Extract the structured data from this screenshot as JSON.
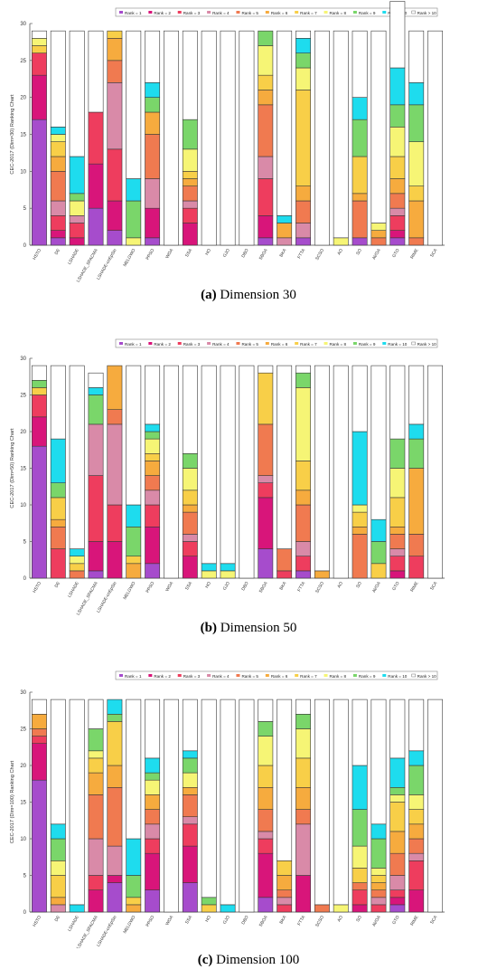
{
  "algorithms": [
    "HSTO",
    "DE",
    "LSHADE",
    "LSHADE_SPACMA",
    "LSHADE-cnEpSin",
    "MELGWO",
    "PPSO",
    "WOA",
    "SSA",
    "HO",
    "GJO",
    "DBO",
    "SBOA",
    "BKA",
    "FTTA",
    "SCSO",
    "AO",
    "SO",
    "AVOA",
    "GTO",
    "RIME",
    "SCA"
  ],
  "legend": [
    "Rank = 1",
    "Rank = 2",
    "Rank = 3",
    "Rank = 4",
    "Rank = 5",
    "Rank = 6",
    "Rank = 7",
    "Rank = 8",
    "Rank = 9",
    "Rank = 10",
    "Rank > 10"
  ],
  "colors": [
    "#a64ccc",
    "#d8157a",
    "#ee3d5e",
    "#d98aa8",
    "#f07a50",
    "#f6ab3e",
    "#f8cf48",
    "#f6f575",
    "#7ad66a",
    "#1edcee",
    "#ffffff"
  ],
  "captions": [
    {
      "label": "(a)",
      "text": " Dimension 30"
    },
    {
      "label": "(b)",
      "text": " Dimension 50"
    },
    {
      "label": "(c)",
      "text": " Dimension 100"
    }
  ],
  "chart_data": [
    {
      "type": "bar",
      "stacked": true,
      "ylabel": "CEC-2017 (Dim=30) Ranking Chart",
      "ylim": [
        0,
        30
      ],
      "yticks": [
        0,
        5,
        10,
        15,
        20,
        25,
        30
      ],
      "counts": [
        [
          17,
          6,
          3,
          0,
          0,
          0,
          1,
          1,
          0,
          0,
          1
        ],
        [
          1,
          1,
          2,
          2,
          4,
          2,
          2,
          1,
          0,
          1,
          13
        ],
        [
          0,
          1,
          2,
          1,
          0,
          0,
          0,
          2,
          1,
          5,
          17
        ],
        [
          5,
          6,
          7,
          0,
          0,
          0,
          0,
          0,
          0,
          0,
          11
        ],
        [
          2,
          4,
          7,
          9,
          3,
          3,
          1,
          0,
          0,
          0,
          0
        ],
        [
          0,
          0,
          0,
          0,
          0,
          0,
          0,
          1,
          5,
          3,
          20
        ],
        [
          1,
          4,
          0,
          4,
          6,
          3,
          0,
          0,
          2,
          2,
          7
        ],
        [
          0,
          0,
          0,
          0,
          0,
          0,
          0,
          0,
          0,
          0,
          29
        ],
        [
          0,
          3,
          2,
          1,
          2,
          1,
          1,
          3,
          4,
          0,
          12
        ],
        [
          0,
          0,
          0,
          0,
          0,
          0,
          0,
          0,
          0,
          0,
          29
        ],
        [
          0,
          0,
          0,
          0,
          0,
          0,
          0,
          0,
          0,
          0,
          29
        ],
        [
          0,
          0,
          0,
          0,
          0,
          0,
          0,
          0,
          0,
          0,
          29
        ],
        [
          1,
          3,
          5,
          3,
          7,
          2,
          2,
          4,
          2,
          0,
          0
        ],
        [
          0,
          0,
          0,
          1,
          0,
          2,
          0,
          0,
          0,
          1,
          25
        ],
        [
          1,
          0,
          0,
          2,
          3,
          2,
          13,
          3,
          2,
          2,
          1
        ],
        [
          0,
          0,
          0,
          0,
          0,
          0,
          0,
          0,
          0,
          0,
          29
        ],
        [
          0,
          0,
          0,
          0,
          0,
          0,
          0,
          1,
          0,
          0,
          28
        ],
        [
          1,
          0,
          0,
          0,
          5,
          1,
          5,
          0,
          5,
          3,
          9
        ],
        [
          0,
          0,
          0,
          0,
          1,
          1,
          0,
          1,
          0,
          0,
          26
        ],
        [
          1,
          1,
          2,
          1,
          2,
          2,
          3,
          4,
          3,
          5,
          9
        ],
        [
          0,
          0,
          0,
          0,
          1,
          5,
          2,
          6,
          5,
          3,
          7
        ],
        [
          0,
          0,
          0,
          0,
          0,
          0,
          0,
          0,
          0,
          0,
          29
        ]
      ]
    },
    {
      "type": "bar",
      "stacked": true,
      "ylabel": "CEC-2017 (Dim=50) Ranking Chart",
      "ylim": [
        0,
        30
      ],
      "yticks": [
        0,
        5,
        10,
        15,
        20,
        25,
        30
      ],
      "counts": [
        [
          18,
          4,
          3,
          0,
          0,
          0,
          1,
          0,
          1,
          0,
          2
        ],
        [
          0,
          0,
          4,
          0,
          3,
          1,
          3,
          0,
          2,
          6,
          10
        ],
        [
          0,
          0,
          0,
          0,
          1,
          0,
          1,
          1,
          0,
          1,
          25
        ],
        [
          1,
          4,
          9,
          7,
          0,
          0,
          0,
          0,
          4,
          1,
          2
        ],
        [
          0,
          5,
          5,
          11,
          2,
          6,
          0,
          0,
          0,
          0,
          0
        ],
        [
          0,
          0,
          0,
          0,
          0,
          2,
          1,
          0,
          4,
          3,
          19
        ],
        [
          2,
          5,
          3,
          2,
          2,
          2,
          1,
          2,
          1,
          1,
          8
        ],
        [
          0,
          0,
          0,
          0,
          0,
          0,
          0,
          0,
          0,
          0,
          29
        ],
        [
          0,
          3,
          2,
          1,
          3,
          1,
          2,
          3,
          2,
          0,
          12
        ],
        [
          0,
          0,
          0,
          0,
          0,
          0,
          0,
          1,
          0,
          1,
          27
        ],
        [
          0,
          0,
          0,
          0,
          0,
          0,
          0,
          1,
          0,
          1,
          27
        ],
        [
          0,
          0,
          0,
          0,
          0,
          0,
          0,
          0,
          0,
          0,
          29
        ],
        [
          4,
          7,
          2,
          1,
          7,
          0,
          7,
          0,
          0,
          0,
          1
        ],
        [
          0,
          0,
          1,
          0,
          3,
          0,
          0,
          0,
          0,
          0,
          25
        ],
        [
          1,
          0,
          2,
          2,
          5,
          2,
          4,
          10,
          2,
          0,
          1
        ],
        [
          0,
          0,
          0,
          0,
          0,
          1,
          0,
          0,
          0,
          0,
          28
        ],
        [
          0,
          0,
          0,
          0,
          0,
          0,
          0,
          0,
          0,
          0,
          29
        ],
        [
          0,
          0,
          0,
          0,
          6,
          1,
          2,
          1,
          0,
          10,
          9
        ],
        [
          0,
          0,
          0,
          0,
          0,
          0,
          2,
          0,
          3,
          3,
          21
        ],
        [
          0,
          1,
          2,
          1,
          2,
          1,
          4,
          4,
          4,
          0,
          10
        ],
        [
          0,
          0,
          3,
          0,
          3,
          9,
          0,
          0,
          4,
          2,
          8
        ],
        [
          0,
          0,
          0,
          0,
          0,
          0,
          0,
          0,
          0,
          0,
          29
        ]
      ]
    },
    {
      "type": "bar",
      "stacked": true,
      "ylabel": "CEC-2017 (Dim=100) Ranking Chart",
      "ylim": [
        0,
        30
      ],
      "yticks": [
        0,
        5,
        10,
        15,
        20,
        25,
        30
      ],
      "counts": [
        [
          18,
          5,
          1,
          0,
          1,
          2,
          0,
          0,
          0,
          0,
          2
        ],
        [
          0,
          0,
          0,
          1,
          0,
          1,
          3,
          2,
          3,
          2,
          17
        ],
        [
          0,
          0,
          0,
          0,
          0,
          0,
          0,
          0,
          0,
          1,
          28
        ],
        [
          0,
          3,
          2,
          5,
          6,
          3,
          2,
          1,
          3,
          0,
          4
        ],
        [
          4,
          1,
          0,
          4,
          8,
          3,
          6,
          0,
          1,
          2,
          0
        ],
        [
          0,
          0,
          0,
          0,
          0,
          1,
          1,
          0,
          3,
          5,
          19
        ],
        [
          3,
          5,
          2,
          2,
          2,
          2,
          0,
          2,
          1,
          2,
          8
        ],
        [
          0,
          0,
          0,
          0,
          0,
          0,
          0,
          0,
          0,
          0,
          29
        ],
        [
          4,
          5,
          3,
          1,
          3,
          1,
          0,
          2,
          2,
          1,
          7
        ],
        [
          0,
          0,
          0,
          0,
          0,
          0,
          1,
          0,
          1,
          0,
          27
        ],
        [
          0,
          0,
          0,
          0,
          0,
          0,
          0,
          0,
          0,
          1,
          28
        ],
        [
          0,
          0,
          0,
          0,
          0,
          0,
          0,
          0,
          0,
          0,
          29
        ],
        [
          2,
          6,
          2,
          1,
          3,
          3,
          3,
          4,
          2,
          0,
          3
        ],
        [
          0,
          0,
          1,
          1,
          1,
          2,
          2,
          0,
          0,
          0,
          22
        ],
        [
          0,
          5,
          0,
          7,
          2,
          3,
          4,
          4,
          2,
          0,
          2
        ],
        [
          0,
          0,
          0,
          0,
          1,
          0,
          0,
          0,
          0,
          0,
          28
        ],
        [
          0,
          0,
          0,
          0,
          0,
          0,
          0,
          1,
          0,
          0,
          28
        ],
        [
          0,
          1,
          2,
          0,
          1,
          0,
          2,
          3,
          5,
          6,
          9
        ],
        [
          0,
          0,
          1,
          1,
          1,
          1,
          1,
          1,
          4,
          2,
          17
        ],
        [
          1,
          1,
          1,
          2,
          3,
          3,
          4,
          1,
          1,
          4,
          8
        ],
        [
          0,
          3,
          4,
          1,
          2,
          2,
          2,
          2,
          4,
          2,
          7
        ],
        [
          0,
          0,
          0,
          0,
          0,
          0,
          0,
          0,
          0,
          0,
          29
        ]
      ]
    }
  ]
}
